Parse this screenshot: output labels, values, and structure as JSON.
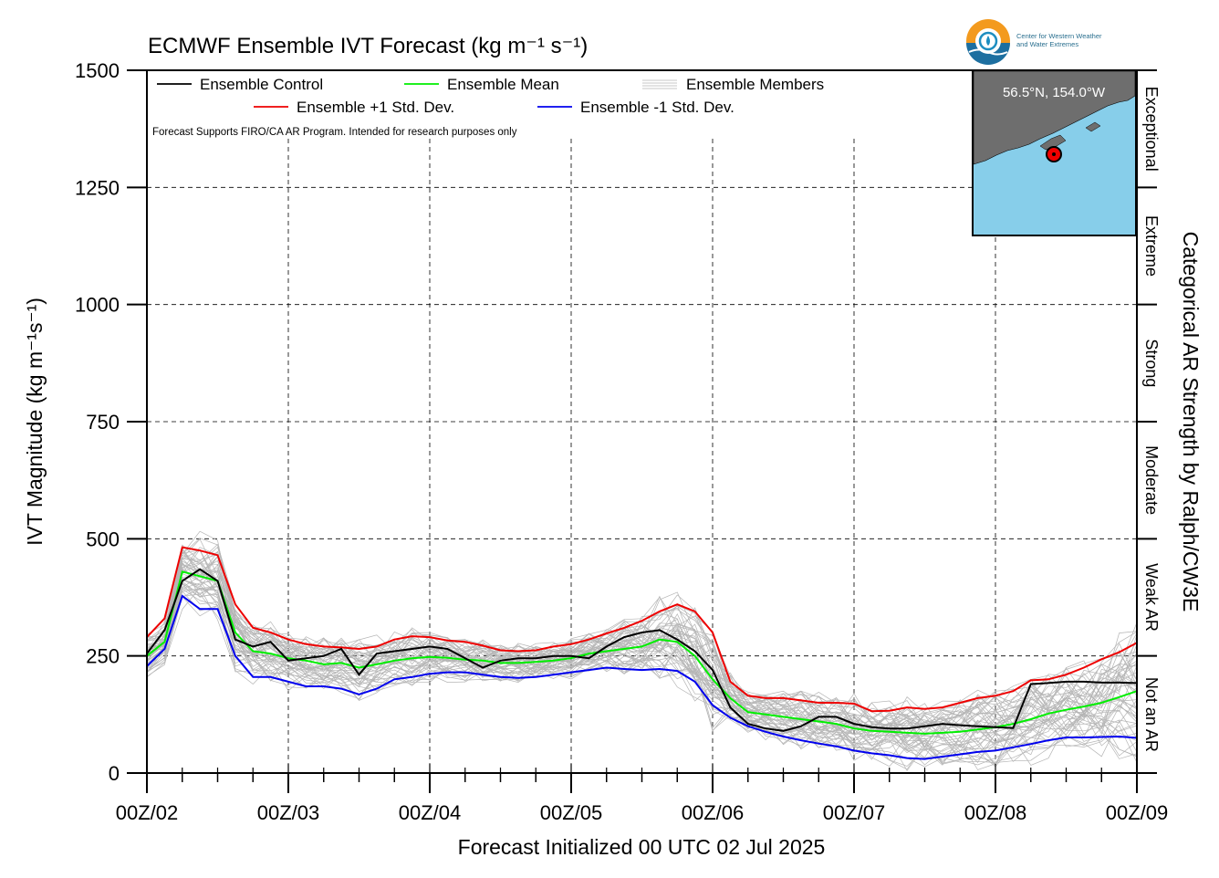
{
  "logo": {
    "line1": "Center for Western Weather",
    "line2": "and Water Extremes"
  },
  "chart_data": {
    "type": "line",
    "title": "ECMWF Ensemble IVT Forecast (kg m⁻¹ s⁻¹)",
    "xlabel": "Forecast Initialized 00 UTC 02 Jul 2025",
    "ylabel": "IVT Magnitude (kg m⁻¹s⁻¹)",
    "right_label": "Categorical AR Strength by Ralph/CW3E",
    "note": "Forecast Supports FIRO/CA AR Program. Intended for research purposes only",
    "ylim": [
      0,
      1500
    ],
    "yticks": [
      0,
      250,
      500,
      750,
      1000,
      1250,
      1500
    ],
    "xlim": [
      0,
      168
    ],
    "xtick_hours": [
      0,
      24,
      48,
      72,
      96,
      120,
      144,
      168
    ],
    "xtick_labels": [
      "00Z/02",
      "00Z/03",
      "00Z/04",
      "00Z/05",
      "00Z/06",
      "00Z/07",
      "00Z/08",
      "00Z/09"
    ],
    "grid": true,
    "legend_placement": "top-left",
    "categories_ar": [
      {
        "label": "Exceptional",
        "range": [
          1250,
          1500
        ]
      },
      {
        "label": "Extreme",
        "range": [
          1000,
          1250
        ]
      },
      {
        "label": "Strong",
        "range": [
          750,
          1000
        ]
      },
      {
        "label": "Moderate",
        "range": [
          500,
          750
        ]
      },
      {
        "label": "Weak AR",
        "range": [
          250,
          500
        ]
      },
      {
        "label": "Not an AR",
        "range": [
          0,
          250
        ]
      }
    ],
    "inset_map": {
      "label": "56.5°N, 154.0°W"
    },
    "colors": {
      "control": "#000000",
      "mean": "#00ee00",
      "plus": "#ee0000",
      "minus": "#0000ee",
      "members": "#b5b5b5"
    },
    "series": [
      {
        "name": "Ensemble Control",
        "x": [
          0,
          3,
          6,
          9,
          12,
          15,
          18,
          21,
          24,
          27,
          30,
          33,
          36,
          39,
          42,
          45,
          48,
          51,
          54,
          57,
          60,
          63,
          66,
          69,
          72,
          75,
          78,
          81,
          84,
          87,
          90,
          93,
          96,
          99,
          102,
          105,
          108,
          111,
          114,
          117,
          120,
          123,
          126,
          129,
          132,
          135,
          138,
          141,
          144,
          147,
          150,
          153,
          156,
          159,
          162,
          165,
          168
        ],
        "values": [
          255,
          305,
          410,
          435,
          410,
          285,
          270,
          280,
          240,
          245,
          250,
          265,
          210,
          255,
          260,
          265,
          270,
          265,
          245,
          225,
          240,
          245,
          245,
          250,
          250,
          245,
          270,
          290,
          300,
          305,
          285,
          260,
          220,
          140,
          105,
          95,
          90,
          100,
          120,
          120,
          105,
          98,
          95,
          95,
          100,
          105,
          102,
          100,
          98,
          96,
          190,
          192,
          195,
          195,
          193,
          193,
          192
        ]
      },
      {
        "name": "Ensemble Mean",
        "x": [
          0,
          3,
          6,
          9,
          12,
          15,
          18,
          21,
          24,
          27,
          30,
          33,
          36,
          39,
          42,
          45,
          48,
          51,
          54,
          57,
          60,
          63,
          66,
          69,
          72,
          75,
          78,
          81,
          84,
          87,
          90,
          93,
          96,
          99,
          102,
          105,
          108,
          111,
          114,
          117,
          120,
          123,
          126,
          129,
          132,
          135,
          138,
          141,
          144,
          147,
          150,
          153,
          156,
          159,
          162,
          165,
          168
        ],
        "values": [
          250,
          280,
          430,
          420,
          410,
          300,
          260,
          255,
          245,
          240,
          232,
          235,
          225,
          232,
          240,
          245,
          248,
          246,
          242,
          240,
          235,
          235,
          237,
          240,
          245,
          255,
          260,
          265,
          270,
          285,
          280,
          250,
          200,
          160,
          130,
          125,
          120,
          115,
          110,
          105,
          95,
          90,
          88,
          86,
          84,
          86,
          88,
          93,
          98,
          105,
          115,
          127,
          135,
          142,
          150,
          162,
          175
        ]
      },
      {
        "name": "Ensemble +1 Std. Dev.",
        "x": [
          0,
          3,
          6,
          9,
          12,
          15,
          18,
          21,
          24,
          27,
          30,
          33,
          36,
          39,
          42,
          45,
          48,
          51,
          54,
          57,
          60,
          63,
          66,
          69,
          72,
          75,
          78,
          81,
          84,
          87,
          90,
          93,
          96,
          99,
          102,
          105,
          108,
          111,
          114,
          117,
          120,
          123,
          126,
          129,
          132,
          135,
          138,
          141,
          144,
          147,
          150,
          153,
          156,
          159,
          162,
          165,
          168
        ],
        "values": [
          290,
          330,
          482,
          475,
          465,
          360,
          310,
          300,
          285,
          275,
          270,
          268,
          265,
          270,
          285,
          292,
          290,
          283,
          280,
          272,
          262,
          260,
          262,
          270,
          275,
          285,
          298,
          310,
          325,
          345,
          360,
          345,
          300,
          195,
          165,
          160,
          160,
          155,
          150,
          150,
          148,
          132,
          133,
          140,
          137,
          140,
          150,
          160,
          165,
          175,
          198,
          200,
          210,
          225,
          243,
          258,
          278
        ]
      },
      {
        "name": "Ensemble -1 Std. Dev.",
        "x": [
          0,
          3,
          6,
          9,
          12,
          15,
          18,
          21,
          24,
          27,
          30,
          33,
          36,
          39,
          42,
          45,
          48,
          51,
          54,
          57,
          60,
          63,
          66,
          69,
          72,
          75,
          78,
          81,
          84,
          87,
          90,
          93,
          96,
          99,
          102,
          105,
          108,
          111,
          114,
          117,
          120,
          123,
          126,
          129,
          132,
          135,
          138,
          141,
          144,
          147,
          150,
          153,
          156,
          159,
          162,
          165,
          168
        ],
        "values": [
          228,
          265,
          378,
          350,
          350,
          250,
          205,
          205,
          195,
          185,
          185,
          180,
          168,
          180,
          200,
          205,
          212,
          215,
          215,
          210,
          205,
          203,
          205,
          210,
          215,
          220,
          225,
          222,
          220,
          222,
          218,
          195,
          145,
          118,
          100,
          88,
          78,
          70,
          63,
          57,
          48,
          42,
          38,
          32,
          30,
          35,
          40,
          45,
          48,
          55,
          62,
          70,
          76,
          76,
          77,
          78,
          75
        ]
      }
    ],
    "members_note": "Ensemble Members"
  }
}
